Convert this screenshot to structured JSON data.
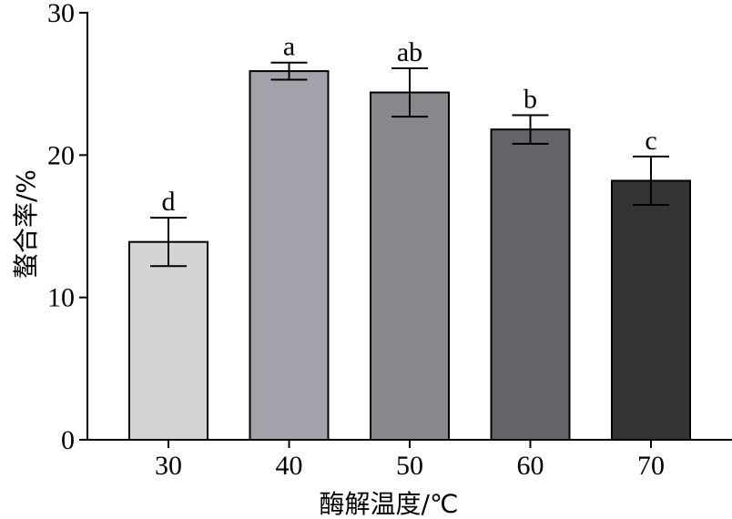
{
  "chart_data": {
    "type": "bar",
    "categories": [
      "30",
      "40",
      "50",
      "60",
      "70"
    ],
    "values": [
      13.9,
      25.9,
      24.4,
      21.8,
      18.2
    ],
    "errors": [
      1.7,
      0.6,
      1.7,
      1.0,
      1.7
    ],
    "labels": [
      "d",
      "a",
      "ab",
      "b",
      "c"
    ],
    "colors": [
      "#d4d4d6",
      "#a3a2aa",
      "#88878c",
      "#656468",
      "#333335"
    ],
    "xlabel": "酶解温度/℃",
    "ylabel": "螯合率/%",
    "ylim": [
      0,
      30
    ],
    "yticks": [
      0,
      10,
      20,
      30
    ],
    "grid": false
  }
}
